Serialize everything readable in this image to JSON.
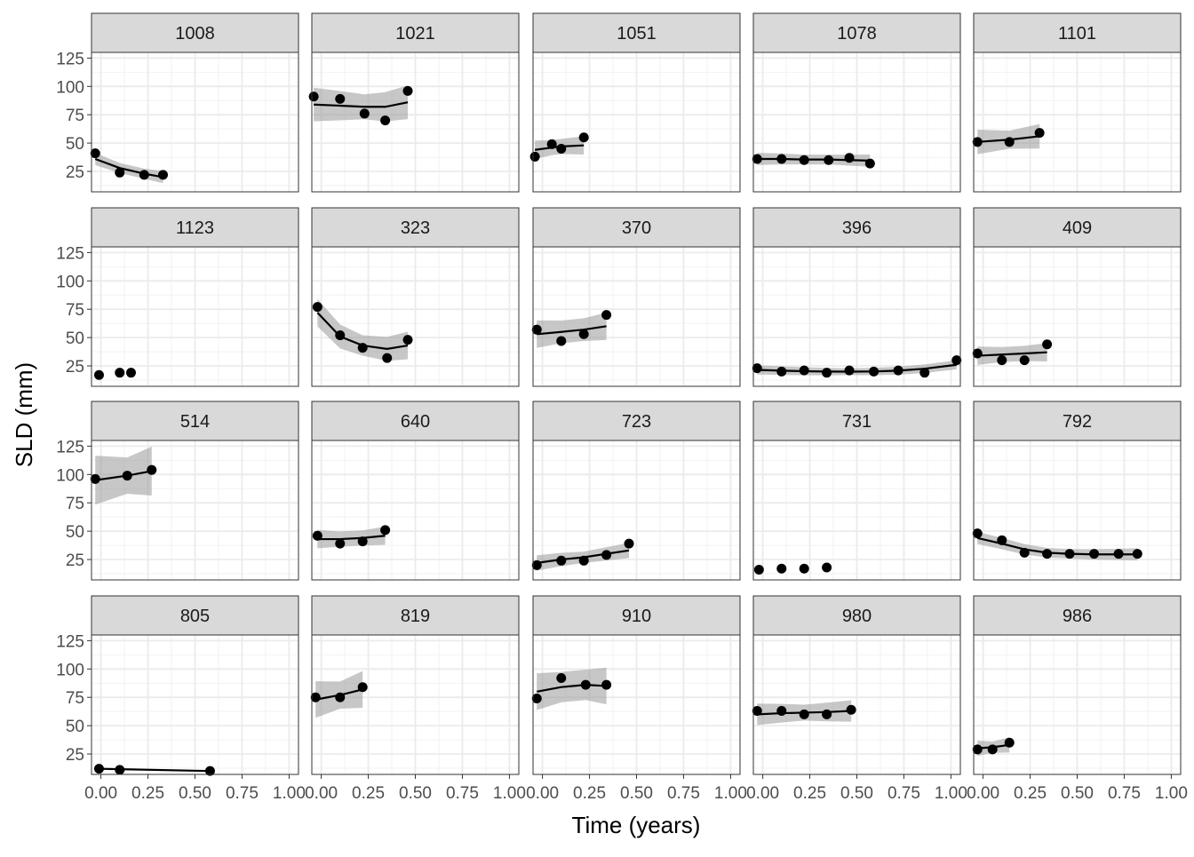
{
  "chart_data": {
    "type": "scatter",
    "facet_layout": "5 columns x 4 rows",
    "xlabel": "Time (years)",
    "ylabel": "SLD (mm)",
    "xlim": [
      -0.05,
      1.05
    ],
    "ylim": [
      7,
      130
    ],
    "x_ticks": [
      0.0,
      0.25,
      0.5,
      0.75,
      1.0
    ],
    "x_tick_labels": [
      "0.00",
      "0.25",
      "0.50",
      "0.75",
      "1.00"
    ],
    "y_ticks": [
      25,
      50,
      75,
      100,
      125
    ],
    "y_tick_labels": [
      "25",
      "50",
      "75",
      "100",
      "125"
    ],
    "grid": true,
    "smooth": "line with grey confidence band",
    "panels": [
      {
        "label": "1008",
        "x": [
          -0.03,
          0.1,
          0.23,
          0.33
        ],
        "y": [
          41,
          24,
          22,
          22
        ],
        "fit": [
          36,
          28,
          23,
          20
        ],
        "band": 4
      },
      {
        "label": "1021",
        "x": [
          -0.04,
          0.1,
          0.23,
          0.34,
          0.46
        ],
        "y": [
          91,
          89,
          76,
          70,
          96
        ],
        "fit": [
          84,
          83,
          82,
          82,
          86
        ],
        "band": 11
      },
      {
        "label": "1051",
        "x": [
          -0.04,
          0.05,
          0.1,
          0.22
        ],
        "y": [
          38,
          49,
          45,
          55
        ],
        "fit": [
          44,
          46,
          47,
          48
        ],
        "band": 6
      },
      {
        "label": "1078",
        "x": [
          -0.03,
          0.1,
          0.22,
          0.35,
          0.46,
          0.57
        ],
        "y": [
          36,
          36,
          35,
          35,
          37,
          32
        ],
        "fit": [
          36,
          36,
          35.5,
          35.5,
          35,
          34.5
        ],
        "band": 4
      },
      {
        "label": "1101",
        "x": [
          -0.03,
          0.14,
          0.3
        ],
        "y": [
          51,
          51,
          59
        ],
        "fit": [
          51,
          53,
          56
        ],
        "band": 8
      },
      {
        "label": "1123",
        "x": [
          -0.01,
          0.1,
          0.16
        ],
        "y": [
          17,
          19,
          19
        ],
        "fit": [],
        "band": 0
      },
      {
        "label": "323",
        "x": [
          -0.02,
          0.1,
          0.22,
          0.35,
          0.46
        ],
        "y": [
          77,
          52,
          41,
          32,
          48
        ],
        "fit": [
          72,
          51,
          43,
          40,
          43
        ],
        "band": 9
      },
      {
        "label": "370",
        "x": [
          -0.03,
          0.1,
          0.22,
          0.34
        ],
        "y": [
          57,
          47,
          53,
          70
        ],
        "fit": [
          53,
          55,
          57,
          60
        ],
        "band": 9
      },
      {
        "label": "396",
        "x": [
          -0.03,
          0.1,
          0.22,
          0.34,
          0.46,
          0.59,
          0.72,
          0.86,
          1.03
        ],
        "y": [
          23,
          20,
          21,
          19,
          21,
          20,
          21,
          19,
          30
        ],
        "fit": [
          21.5,
          20.8,
          20.3,
          20,
          19.9,
          20.1,
          20.8,
          22.5,
          26
        ],
        "band": 3
      },
      {
        "label": "409",
        "x": [
          -0.03,
          0.1,
          0.22,
          0.34
        ],
        "y": [
          36,
          30,
          30,
          44
        ],
        "fit": [
          34,
          35,
          36,
          37
        ],
        "band": 6
      },
      {
        "label": "514",
        "x": [
          -0.03,
          0.14,
          0.27
        ],
        "y": [
          96,
          99,
          104
        ],
        "fit": [
          95,
          99,
          103
        ],
        "band": 16
      },
      {
        "label": "640",
        "x": [
          -0.02,
          0.1,
          0.22,
          0.34
        ],
        "y": [
          46,
          39,
          41,
          51
        ],
        "fit": [
          43,
          43,
          44,
          46
        ],
        "band": 6
      },
      {
        "label": "723",
        "x": [
          -0.03,
          0.1,
          0.22,
          0.34,
          0.46
        ],
        "y": [
          20,
          24,
          24,
          29,
          39
        ],
        "fit": [
          22,
          25,
          27,
          30,
          33
        ],
        "band": 5
      },
      {
        "label": "731",
        "x": [
          -0.02,
          0.1,
          0.22,
          0.34
        ],
        "y": [
          16,
          17,
          17,
          18
        ],
        "fit": [],
        "band": 0
      },
      {
        "label": "792",
        "x": [
          -0.03,
          0.1,
          0.22,
          0.34,
          0.46,
          0.59,
          0.72,
          0.82
        ],
        "y": [
          48,
          42,
          31,
          30,
          30,
          30,
          30,
          30
        ],
        "fit": [
          44,
          39,
          34,
          31,
          30,
          29.5,
          29.5,
          29.5
        ],
        "band": 4
      },
      {
        "label": "805",
        "x": [
          -0.01,
          0.1,
          0.58
        ],
        "y": [
          12,
          11,
          10
        ],
        "fit": [
          12,
          11.6,
          10
        ],
        "band": 0
      },
      {
        "label": "819",
        "x": [
          -0.03,
          0.1,
          0.22
        ],
        "y": [
          75,
          75,
          84
        ],
        "fit": [
          73,
          77,
          82
        ],
        "band": 12
      },
      {
        "label": "910",
        "x": [
          -0.03,
          0.1,
          0.23,
          0.34
        ],
        "y": [
          74,
          92,
          86,
          86
        ],
        "fit": [
          80,
          84,
          86,
          85
        ],
        "band": 12
      },
      {
        "label": "980",
        "x": [
          -0.03,
          0.1,
          0.22,
          0.34,
          0.47
        ],
        "y": [
          63,
          63,
          60,
          60,
          64
        ],
        "fit": [
          60,
          61,
          61.5,
          62,
          63
        ],
        "band": 7
      },
      {
        "label": "986",
        "x": [
          -0.03,
          0.05,
          0.14
        ],
        "y": [
          29,
          29,
          35
        ],
        "fit": [
          30,
          31,
          33
        ],
        "band": 5
      }
    ]
  }
}
